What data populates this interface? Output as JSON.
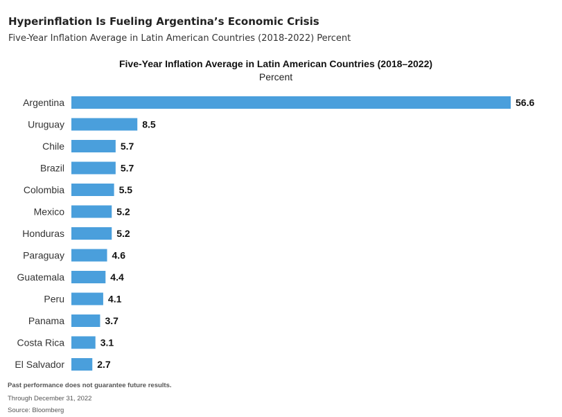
{
  "header": {
    "title": "Hyperinflation Is Fueling Argentina’s Economic Crisis",
    "subtitle": "Five-Year Inflation Average in Latin American Countries (2018-2022) Percent"
  },
  "chart_data": {
    "type": "bar",
    "orientation": "horizontal",
    "title": "Five-Year Inflation Average in Latin American Countries (2018–2022)",
    "subtitle": "Percent",
    "categories": [
      "Argentina",
      "Uruguay",
      "Chile",
      "Brazil",
      "Colombia",
      "Mexico",
      "Honduras",
      "Paraguay",
      "Guatemala",
      "Peru",
      "Panama",
      "Costa Rica",
      "El Salvador"
    ],
    "values": [
      56.6,
      8.5,
      5.7,
      5.7,
      5.5,
      5.2,
      5.2,
      4.6,
      4.4,
      4.1,
      3.7,
      3.1,
      2.7
    ],
    "value_labels": [
      "56.6",
      "8.5",
      "5.7",
      "5.7",
      "5.5",
      "5.2",
      "5.2",
      "4.6",
      "4.4",
      "4.1",
      "3.7",
      "3.1",
      "2.7"
    ],
    "xlim": [
      0,
      56.6
    ],
    "grid": false,
    "legend": "none",
    "bar_color": "#4a9fdc"
  },
  "footer": {
    "disclaimer": "Past performance does not guarantee future results.",
    "date_note": "Through December 31, 2022",
    "source": "Source: Bloomberg"
  }
}
